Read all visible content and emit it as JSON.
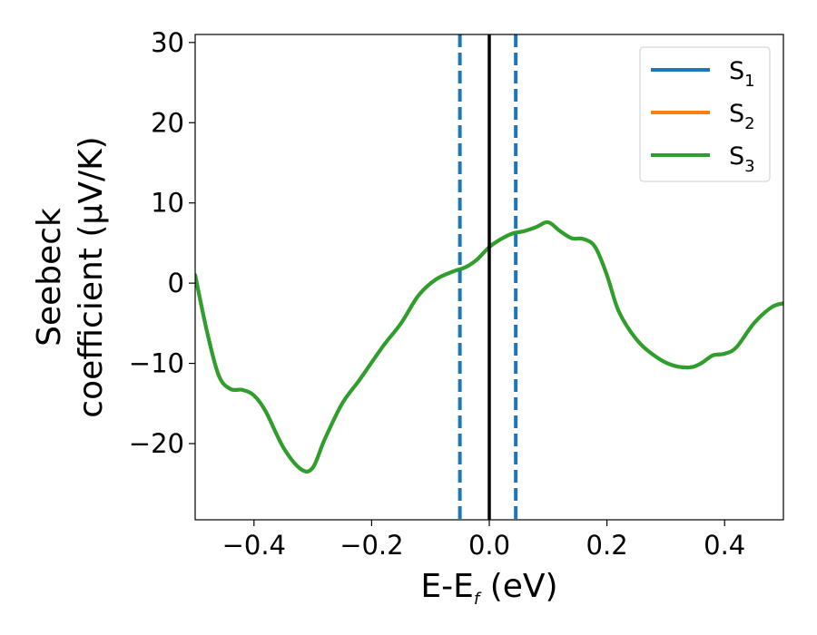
{
  "chart_data": {
    "type": "line",
    "xlabel": "E-E",
    "xlabel_sub": "f",
    "xlabel_unit": " (eV)",
    "ylabel_line1": "Seebeck",
    "ylabel_line2": "coefficient  (μV/K)",
    "xlim": [
      -0.5,
      0.5
    ],
    "ylim": [
      -29.5,
      31
    ],
    "xticks": [
      -0.4,
      -0.2,
      0.0,
      0.2,
      0.4
    ],
    "xtick_labels": [
      "−0.4",
      "−0.2",
      "0.0",
      "0.2",
      "0.4"
    ],
    "yticks": [
      -20,
      -10,
      0,
      10,
      20,
      30
    ],
    "ytick_labels": [
      "−20",
      "−10",
      "0",
      "10",
      "20",
      "30"
    ],
    "grid": false,
    "legend_position": "top-right",
    "vlines": [
      {
        "x": -0.05,
        "style": "dashed",
        "color": "#1f77b4"
      },
      {
        "x": 0.0,
        "style": "solid",
        "color": "#000000"
      },
      {
        "x": 0.045,
        "style": "dashed",
        "color": "#1f77b4"
      }
    ],
    "series": [
      {
        "name": "S",
        "sub": "1",
        "color": "#1f77b4",
        "x": [
          -0.5,
          -0.48,
          -0.46,
          -0.44,
          -0.42,
          -0.4,
          -0.38,
          -0.35,
          -0.32,
          -0.3,
          -0.28,
          -0.25,
          -0.22,
          -0.18,
          -0.15,
          -0.12,
          -0.09,
          -0.06,
          -0.04,
          -0.02,
          0.0,
          0.02,
          0.04,
          0.06,
          0.08,
          0.1,
          0.12,
          0.14,
          0.16,
          0.18,
          0.2,
          0.22,
          0.25,
          0.28,
          0.31,
          0.34,
          0.36,
          0.38,
          0.4,
          0.42,
          0.45,
          0.48,
          0.5
        ],
        "y": [
          1.0,
          -6.0,
          -11.5,
          -13.2,
          -13.3,
          -14.0,
          -16.0,
          -20.5,
          -23.2,
          -23.0,
          -19.5,
          -15.0,
          -12.0,
          -7.8,
          -5.0,
          -1.5,
          0.5,
          1.5,
          2.0,
          3.0,
          4.5,
          5.5,
          6.2,
          6.5,
          7.0,
          7.6,
          6.5,
          5.6,
          5.5,
          4.5,
          1.0,
          -3.5,
          -7.0,
          -9.0,
          -10.2,
          -10.5,
          -10.0,
          -9.0,
          -8.8,
          -8.0,
          -5.0,
          -3.0,
          -2.5
        ]
      },
      {
        "name": "S",
        "sub": "2",
        "color": "#ff7f0e",
        "x": [
          -0.5,
          -0.48,
          -0.46,
          -0.44,
          -0.42,
          -0.4,
          -0.38,
          -0.35,
          -0.32,
          -0.3,
          -0.28,
          -0.25,
          -0.22,
          -0.18,
          -0.15,
          -0.12,
          -0.09,
          -0.06,
          -0.04,
          -0.02,
          0.0,
          0.02,
          0.04,
          0.06,
          0.08,
          0.1,
          0.12,
          0.14,
          0.16,
          0.18,
          0.2,
          0.22,
          0.25,
          0.28,
          0.31,
          0.34,
          0.36,
          0.38,
          0.4,
          0.42,
          0.45,
          0.48,
          0.5
        ],
        "y": [
          1.0,
          -6.0,
          -11.5,
          -13.2,
          -13.3,
          -14.0,
          -16.0,
          -20.5,
          -23.2,
          -23.0,
          -19.5,
          -15.0,
          -12.0,
          -7.8,
          -5.0,
          -1.5,
          0.5,
          1.5,
          2.0,
          3.0,
          4.5,
          5.5,
          6.2,
          6.5,
          7.0,
          7.6,
          6.5,
          5.6,
          5.5,
          4.5,
          1.0,
          -3.5,
          -7.0,
          -9.0,
          -10.2,
          -10.5,
          -10.0,
          -9.0,
          -8.8,
          -8.0,
          -5.0,
          -3.0,
          -2.5
        ]
      },
      {
        "name": "S",
        "sub": "3",
        "color": "#2ca02c",
        "x": [
          -0.5,
          -0.48,
          -0.46,
          -0.44,
          -0.42,
          -0.4,
          -0.38,
          -0.35,
          -0.32,
          -0.3,
          -0.28,
          -0.25,
          -0.22,
          -0.18,
          -0.15,
          -0.12,
          -0.09,
          -0.06,
          -0.04,
          -0.02,
          0.0,
          0.02,
          0.04,
          0.06,
          0.08,
          0.1,
          0.12,
          0.14,
          0.16,
          0.18,
          0.2,
          0.22,
          0.25,
          0.28,
          0.31,
          0.34,
          0.36,
          0.38,
          0.4,
          0.42,
          0.45,
          0.48,
          0.5
        ],
        "y": [
          1.0,
          -6.0,
          -11.5,
          -13.2,
          -13.3,
          -14.0,
          -16.0,
          -20.5,
          -23.2,
          -23.0,
          -19.5,
          -15.0,
          -12.0,
          -7.8,
          -5.0,
          -1.5,
          0.5,
          1.5,
          2.0,
          3.0,
          4.5,
          5.5,
          6.2,
          6.5,
          7.0,
          7.6,
          6.5,
          5.6,
          5.5,
          4.5,
          1.0,
          -3.5,
          -7.0,
          -9.0,
          -10.2,
          -10.5,
          -10.0,
          -9.0,
          -8.8,
          -8.0,
          -5.0,
          -3.0,
          -2.5
        ]
      }
    ]
  }
}
